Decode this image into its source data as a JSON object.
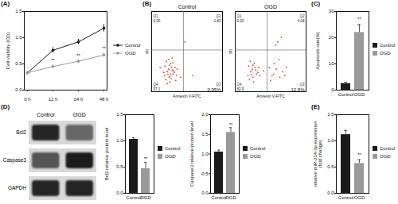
{
  "chart_data": [
    {
      "panel": "(A)",
      "type": "line",
      "x": [
        "0 h",
        "12 h",
        "24 h",
        "48 h"
      ],
      "ylabel": "Cell viability (OD)",
      "ylim": [
        0,
        1.5
      ],
      "yticks": [
        {
          "value": 0,
          "label": "0.0"
        },
        {
          "value": 0.5,
          "label": "0.5"
        },
        {
          "value": 1,
          "label": "1.0"
        },
        {
          "value": 1.5,
          "label": "1.5"
        }
      ],
      "legend": "right",
      "series": [
        {
          "name": "Control",
          "color": "#1a1a1a",
          "marker": "circle",
          "values": [
            0.33,
            0.76,
            0.92,
            1.18
          ],
          "errors": [
            0.02,
            0.05,
            0.05,
            0.07
          ]
        },
        {
          "name": "OGD",
          "color": "#9a9a9a",
          "marker": "circle",
          "values": [
            0.33,
            0.45,
            0.55,
            0.67
          ],
          "errors": [
            0.02,
            0.03,
            0.03,
            0.04
          ]
        }
      ],
      "annotations": [
        {
          "x": "12 h",
          "y": 0.56,
          "text": "**"
        },
        {
          "x": "24 h",
          "y": 0.66,
          "text": "**"
        },
        {
          "x": "48 h",
          "y": 0.79,
          "text": "**"
        }
      ]
    },
    {
      "panel": "(B)",
      "type": "scatter",
      "title": "Control",
      "xlabel": "Annexin V-FITC",
      "ylabel": "PI",
      "xlim": [
        0,
        100
      ],
      "ylim": [
        0,
        100
      ],
      "tick_labels": false,
      "color": "#e03c31",
      "gate": {
        "x": 45,
        "y": 52
      },
      "quadrants": [
        {
          "name": "Q1",
          "value": 0.2,
          "label": "0.20"
        },
        {
          "name": "Q2",
          "value": 1.83,
          "label": "1.83"
        },
        {
          "name": "Q3",
          "value": 0.95,
          "label": "0.95%"
        },
        {
          "name": "Q4",
          "value": 97.1,
          "label": "97.1"
        }
      ],
      "x": [
        18,
        22,
        25,
        28,
        30,
        20,
        24,
        27,
        32,
        35,
        19,
        23,
        26,
        29,
        33,
        21,
        25,
        28,
        31,
        17,
        24,
        30,
        36,
        27,
        22,
        26,
        34,
        29,
        41,
        47,
        58,
        12
      ],
      "y": [
        20,
        25,
        18,
        30,
        22,
        15,
        28,
        35,
        24,
        20,
        32,
        22,
        12,
        27,
        30,
        38,
        33,
        16,
        26,
        24,
        40,
        36,
        28,
        22,
        10,
        19,
        14,
        42,
        18,
        62,
        20,
        30
      ]
    },
    {
      "type": "scatter",
      "title": "OGD",
      "xlabel": "Annexin V-FITC",
      "ylabel": "PI",
      "xlim": [
        0,
        100
      ],
      "ylim": [
        0,
        100
      ],
      "tick_labels": false,
      "color": "#e03c31",
      "gate": {
        "x": 45,
        "y": 52
      },
      "quadrants": [
        {
          "name": "Q1",
          "value": 0.2,
          "label": "0.20"
        },
        {
          "name": "Q2",
          "value": 4.04,
          "label": "4.04"
        },
        {
          "name": "Q3",
          "value": 12.9,
          "label": "12.9%"
        },
        {
          "name": "Q4",
          "value": 82.9,
          "label": "82.9"
        }
      ],
      "x": [
        18,
        22,
        25,
        28,
        30,
        20,
        24,
        27,
        32,
        35,
        19,
        23,
        26,
        29,
        33,
        21,
        25,
        52,
        58,
        63,
        55,
        60,
        67,
        50,
        72,
        57,
        62,
        54,
        65,
        48,
        70,
        40
      ],
      "y": [
        20,
        25,
        18,
        30,
        22,
        15,
        28,
        35,
        24,
        20,
        32,
        22,
        12,
        27,
        30,
        38,
        33,
        20,
        28,
        18,
        35,
        62,
        25,
        14,
        30,
        58,
        40,
        22,
        68,
        30,
        20,
        26
      ]
    },
    {
      "panel": "(C)",
      "type": "bar",
      "categories": [
        "Control",
        "OGD"
      ],
      "values": [
        2.5,
        22
      ],
      "errors": [
        0.5,
        3
      ],
      "colors": [
        "#1a1a1a",
        "#9a9a9a"
      ],
      "ylabel": "Apoptosis rate(%)",
      "ylim": [
        0,
        30
      ],
      "yticks": [
        0,
        10,
        20,
        30
      ],
      "legend": "right",
      "annotations": [
        {
          "x": "OGD",
          "y": 27,
          "text": "**"
        }
      ]
    },
    {
      "panel": "(D)",
      "type": "blot",
      "lanes": [
        "Control",
        "OGD"
      ],
      "rows": [
        "Bcl2",
        "Caspase3",
        "GAPDH"
      ],
      "band_intensity": [
        [
          0.95,
          0.6
        ],
        [
          0.7,
          1
        ],
        [
          0.95,
          0.95
        ]
      ]
    },
    {
      "type": "bar",
      "categories": [
        "Control",
        "OGD"
      ],
      "values": [
        1.03,
        0.47
      ],
      "errors": [
        0.03,
        0.12
      ],
      "colors": [
        "#1a1a1a",
        "#9a9a9a"
      ],
      "ylabel": "Bcl2 relative protein level",
      "ylim": [
        0,
        1.5
      ],
      "yticks": [
        {
          "value": 0,
          "label": "0.0"
        },
        {
          "value": 0.5,
          "label": "0.5"
        },
        {
          "value": 1,
          "label": "1.0"
        },
        {
          "value": 1.5,
          "label": "1.5"
        }
      ],
      "legend": "right",
      "annotations": [
        {
          "x": "OGD",
          "y": 0.66,
          "text": "**"
        }
      ]
    },
    {
      "type": "bar",
      "categories": [
        "Control",
        "OGD"
      ],
      "values": [
        1.05,
        1.55
      ],
      "errors": [
        0.05,
        0.12
      ],
      "colors": [
        "#1a1a1a",
        "#9a9a9a"
      ],
      "ylabel": "Caspase3 relative protein level",
      "ylim": [
        0,
        2
      ],
      "yticks": [
        {
          "value": 0,
          "label": "0.0"
        },
        {
          "value": 0.5,
          "label": "0.5"
        },
        {
          "value": 1,
          "label": "1.0"
        },
        {
          "value": 1.5,
          "label": "1.5"
        },
        {
          "value": 2,
          "label": "2.0"
        }
      ],
      "legend": "right",
      "annotations": [
        {
          "x": "OGD",
          "y": 1.75,
          "text": "**"
        }
      ]
    },
    {
      "panel": "(E)",
      "type": "bar",
      "categories": [
        "Control",
        "OGD"
      ],
      "values": [
        1.12,
        0.57
      ],
      "errors": [
        0.08,
        0.07
      ],
      "colors": [
        "#1a1a1a",
        "#9a9a9a"
      ],
      "ylabel": "relative miR-214-3p expression\n(fold change)",
      "ylim": [
        0,
        1.5
      ],
      "yticks": [
        {
          "value": 0,
          "label": "0.0"
        },
        {
          "value": 0.5,
          "label": "0.5"
        },
        {
          "value": 1,
          "label": "1.0"
        },
        {
          "value": 1.5,
          "label": "1.5"
        }
      ],
      "legend": "right",
      "annotations": [
        {
          "x": "OGD",
          "y": 0.73,
          "text": "**"
        }
      ]
    }
  ]
}
